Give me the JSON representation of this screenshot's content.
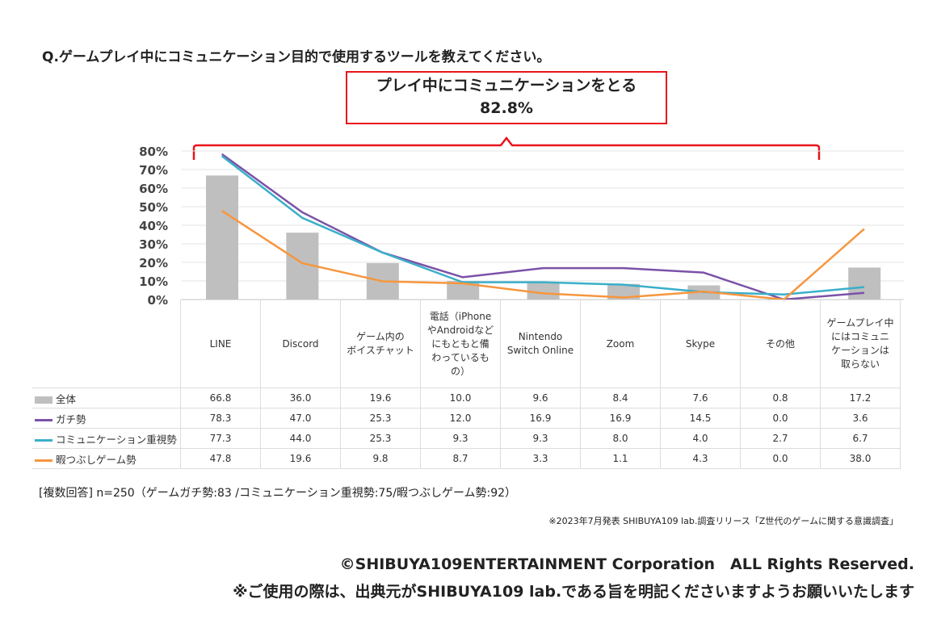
{
  "question": "Q.ゲームプレイ中にコミュニケーション目的で使用するツールを教えてください。",
  "callout": {
    "label": "プレイ中にコミュニケーションをとる",
    "value": "82.8%"
  },
  "chart_data": {
    "type": "bar+line",
    "categories": [
      "LINE",
      "Discord",
      "ゲーム内のボイスチャット",
      "電話（iPhoneやAndroidなどにもともと備わっているもの）",
      "Nintendo Switch Online",
      "Zoom",
      "Skype",
      "その他",
      "ゲームプレイ中にはコミュニケーションは取らない"
    ],
    "category_lines": [
      [
        "LINE"
      ],
      [
        "Discord"
      ],
      [
        "ゲーム内の",
        "ボイスチャット"
      ],
      [
        "電話（iPhone",
        "やAndroidなど",
        "にもともと備",
        "わっているも",
        "の）"
      ],
      [
        "Nintendo",
        "Switch Online"
      ],
      [
        "Zoom"
      ],
      [
        "Skype"
      ],
      [
        "その他"
      ],
      [
        "ゲームプレイ中",
        "にはコミュニ",
        "ケーションは",
        "取らない"
      ]
    ],
    "yticks": [
      "0%",
      "10%",
      "20%",
      "30%",
      "40%",
      "50%",
      "60%",
      "70%",
      "80%"
    ],
    "ylim": [
      0,
      80
    ],
    "series": [
      {
        "name": "全体",
        "kind": "bar",
        "color": "#bfbfbf",
        "values": [
          "66.8",
          "36.0",
          "19.6",
          "10.0",
          "9.6",
          "8.4",
          "7.6",
          "0.8",
          "17.2"
        ]
      },
      {
        "name": "ガチ勢",
        "kind": "line",
        "color": "#7b52a8",
        "values": [
          "78.3",
          "47.0",
          "25.3",
          "12.0",
          "16.9",
          "16.9",
          "14.5",
          "0.0",
          "3.6"
        ]
      },
      {
        "name": "コミュニケーション重視勢",
        "kind": "line",
        "color": "#3aafc9",
        "values": [
          "77.3",
          "44.0",
          "25.3",
          "9.3",
          "9.3",
          "8.0",
          "4.0",
          "2.7",
          "6.7"
        ]
      },
      {
        "name": "暇つぶしゲーム勢",
        "kind": "line",
        "color": "#f7963e",
        "values": [
          "47.8",
          "19.6",
          "9.8",
          "8.7",
          "3.3",
          "1.1",
          "4.3",
          "0.0",
          "38.0"
        ]
      }
    ]
  },
  "note": "[複数回答] n=250（ゲームガチ勢:83 /コミュニケーション重視勢:75/暇つぶしゲーム勢:92）",
  "source": "※2023年7月発表 SHIBUYA109 lab.調査リリース「Z世代のゲームに関する意識調査」",
  "copyright": "©SHIBUYA109ENTERTAINMENT Corporation　ALL Rights Reserved.",
  "usage": "※ご使用の際は、出典元がSHIBUYA109 lab.である旨を明記くださいますようお願いいたします"
}
